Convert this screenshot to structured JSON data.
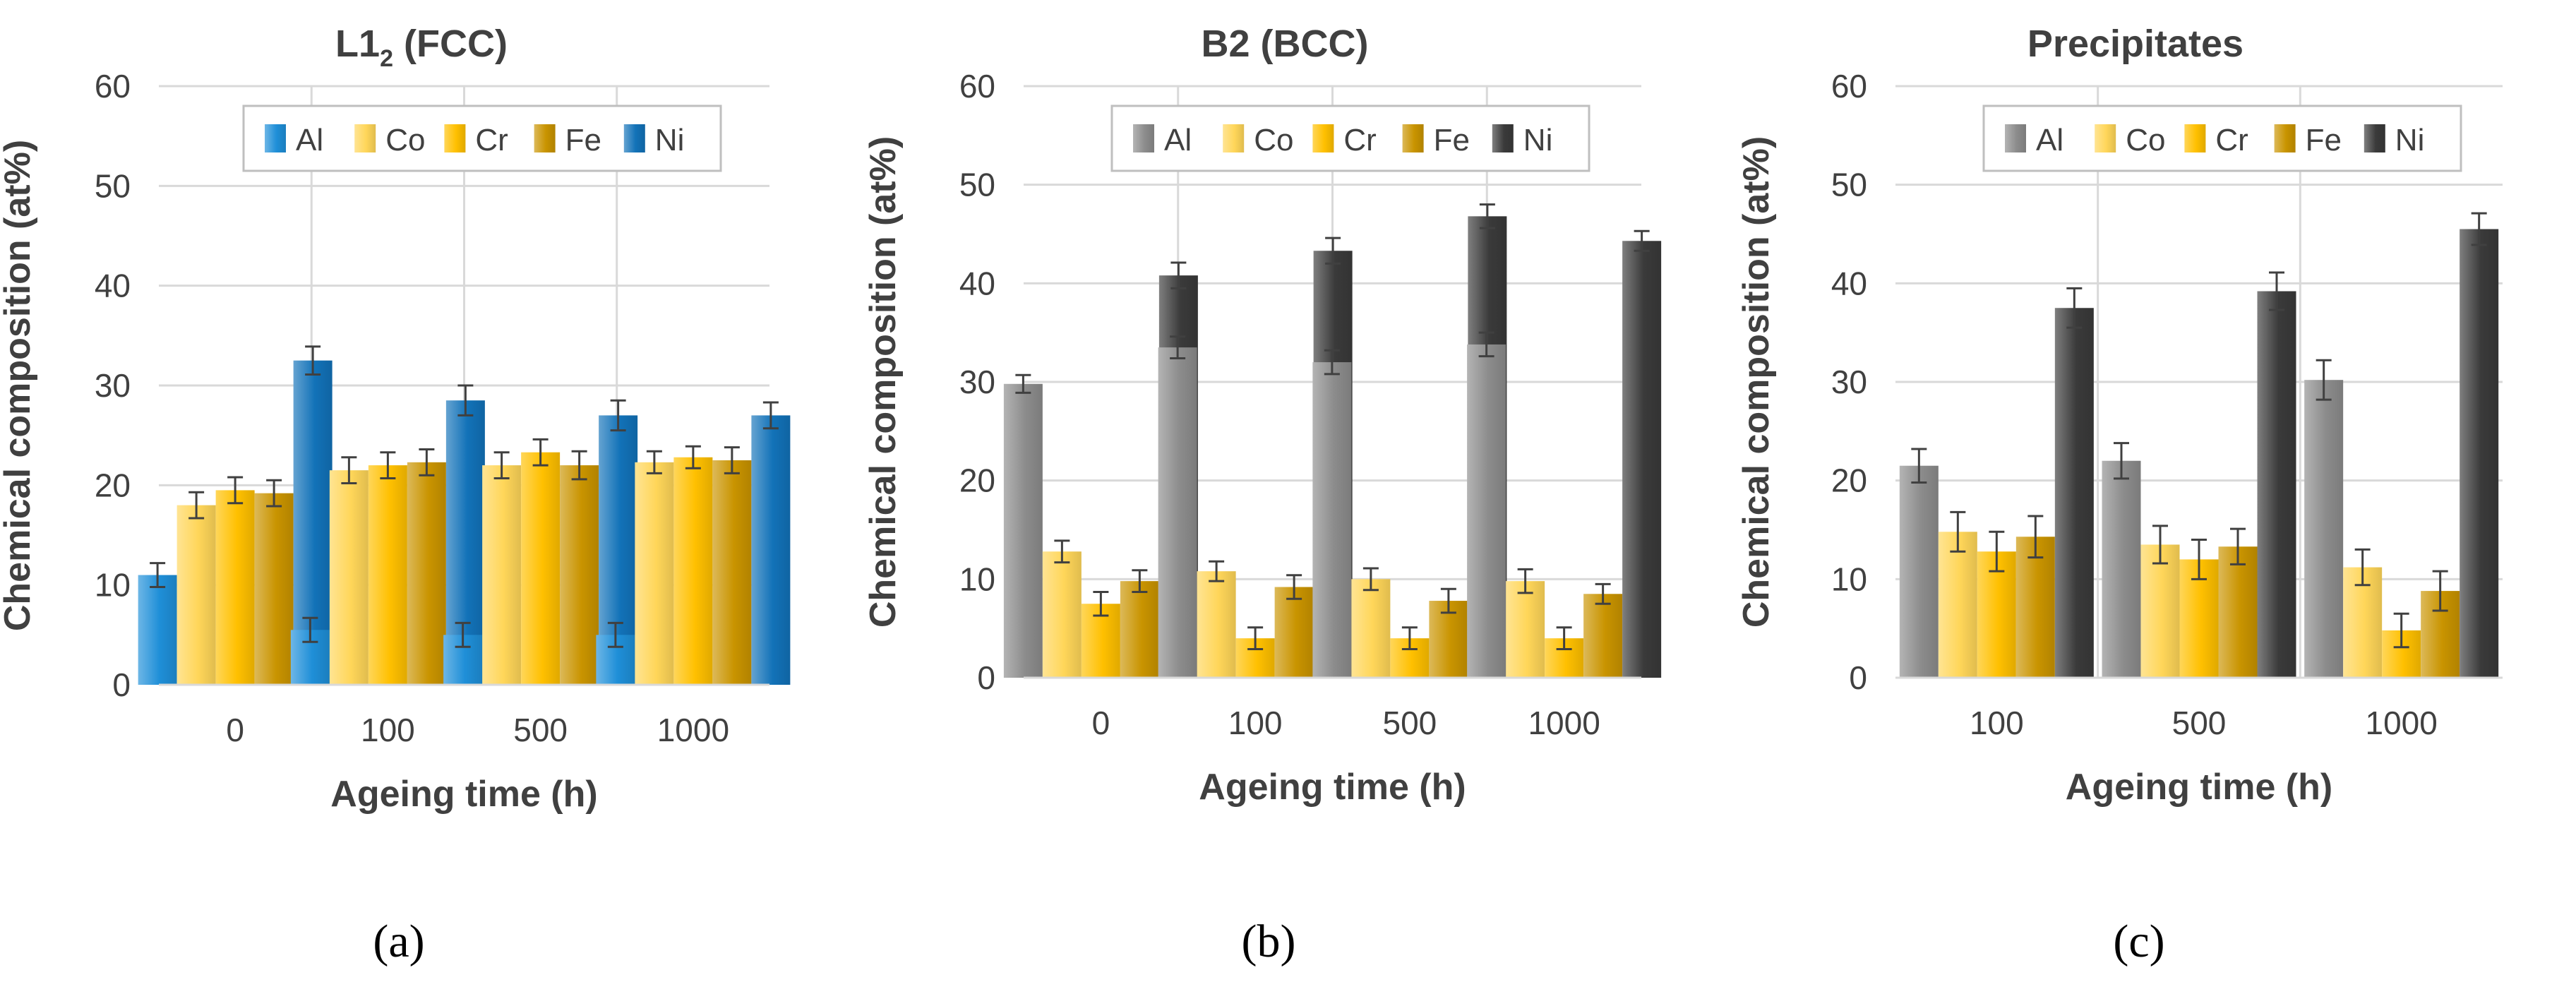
{
  "figure": {
    "panel_labels": [
      "(a)",
      "(b)",
      "(c)"
    ],
    "colors": {
      "Al_blue": "#1f8fd8",
      "Ni_blue": "#1272b8",
      "Al_grey": "#8c8c8c",
      "Ni_dark": "#3a3a3a",
      "Co": "#ffd659",
      "Cr": "#ffc000",
      "Fe": "#c99400",
      "grid": "#d9d9d9",
      "axis_text": "#404040",
      "error_bar": "#404040"
    }
  },
  "chart_data": [
    {
      "id": "a",
      "type": "bar",
      "title_main": "L1",
      "title_sub": "2",
      "title_rest": " (FCC)",
      "xlabel": "Ageing time (h)",
      "ylabel": "Chemical composition (at%)",
      "ylim": [
        0,
        60
      ],
      "yticks": [
        "0",
        "10",
        "20",
        "30",
        "40",
        "50",
        "60"
      ],
      "grid": true,
      "legend": "top-center",
      "categories": [
        "0",
        "100",
        "500",
        "1000"
      ],
      "series": [
        {
          "name": "Al",
          "color": "Al_blue",
          "values": [
            11,
            5.5,
            5,
            5
          ],
          "errors": [
            1.2,
            1.2,
            1.2,
            1.2
          ]
        },
        {
          "name": "Co",
          "color": "Co",
          "values": [
            18,
            21.5,
            22,
            22.3
          ],
          "errors": [
            1.3,
            1.3,
            1.3,
            1.1
          ]
        },
        {
          "name": "Cr",
          "color": "Cr",
          "values": [
            19.5,
            22,
            23.3,
            22.8
          ],
          "errors": [
            1.3,
            1.3,
            1.3,
            1.1
          ]
        },
        {
          "name": "Fe",
          "color": "Fe",
          "values": [
            19.2,
            22.3,
            22,
            22.5
          ],
          "errors": [
            1.3,
            1.3,
            1.4,
            1.3
          ]
        },
        {
          "name": "Ni",
          "color": "Ni_blue",
          "values": [
            32.5,
            28.5,
            27,
            27
          ],
          "errors": [
            1.4,
            1.5,
            1.5,
            1.3
          ]
        }
      ]
    },
    {
      "id": "b",
      "type": "bar",
      "title_main": "B2 (BCC)",
      "title_sub": "",
      "title_rest": "",
      "xlabel": "Ageing time (h)",
      "ylabel": "Chemical composition (at%)",
      "ylim": [
        0,
        60
      ],
      "yticks": [
        "0",
        "10",
        "20",
        "30",
        "40",
        "50",
        "60"
      ],
      "grid": true,
      "legend": "top-center",
      "categories": [
        "0",
        "100",
        "500",
        "1000"
      ],
      "series": [
        {
          "name": "Al",
          "color": "Al_grey",
          "values": [
            29.8,
            33.5,
            32,
            33.8
          ],
          "errors": [
            0.9,
            1.1,
            1.2,
            1.2
          ]
        },
        {
          "name": "Co",
          "color": "Co",
          "values": [
            12.8,
            10.8,
            10,
            9.8
          ],
          "errors": [
            1.1,
            1.0,
            1.1,
            1.2
          ]
        },
        {
          "name": "Cr",
          "color": "Cr",
          "values": [
            7.5,
            4,
            4,
            4
          ],
          "errors": [
            1.2,
            1.1,
            1.1,
            1.1
          ]
        },
        {
          "name": "Fe",
          "color": "Fe",
          "values": [
            9.8,
            9.2,
            7.8,
            8.5
          ],
          "errors": [
            1.1,
            1.2,
            1.2,
            1.0
          ]
        },
        {
          "name": "Ni",
          "color": "Ni_dark",
          "values": [
            40.8,
            43.3,
            46.8,
            44.3
          ],
          "errors": [
            1.3,
            1.3,
            1.2,
            1.0
          ]
        }
      ]
    },
    {
      "id": "c",
      "type": "bar",
      "title_main": "Precipitates",
      "title_sub": "",
      "title_rest": "",
      "xlabel": "Ageing time (h)",
      "ylabel": "Chemical composition (at%)",
      "ylim": [
        0,
        60
      ],
      "yticks": [
        "0",
        "10",
        "20",
        "30",
        "40",
        "50",
        "60"
      ],
      "grid": true,
      "legend": "top-center",
      "categories": [
        "100",
        "500",
        "1000"
      ],
      "series": [
        {
          "name": "Al",
          "color": "Al_grey",
          "values": [
            21.5,
            22,
            30.2
          ],
          "errors": [
            1.7,
            1.8,
            2.0
          ]
        },
        {
          "name": "Co",
          "color": "Co",
          "values": [
            14.8,
            13.5,
            11.2
          ],
          "errors": [
            2.0,
            1.9,
            1.8
          ]
        },
        {
          "name": "Cr",
          "color": "Cr",
          "values": [
            12.8,
            12,
            4.8
          ],
          "errors": [
            2.0,
            2.0,
            1.7
          ]
        },
        {
          "name": "Fe",
          "color": "Fe",
          "values": [
            14.3,
            13.3,
            8.8
          ],
          "errors": [
            2.1,
            1.8,
            2.0
          ]
        },
        {
          "name": "Ni",
          "color": "Ni_dark",
          "values": [
            37.5,
            39.2,
            45.5
          ],
          "errors": [
            2.0,
            1.9,
            1.6
          ]
        }
      ]
    }
  ]
}
